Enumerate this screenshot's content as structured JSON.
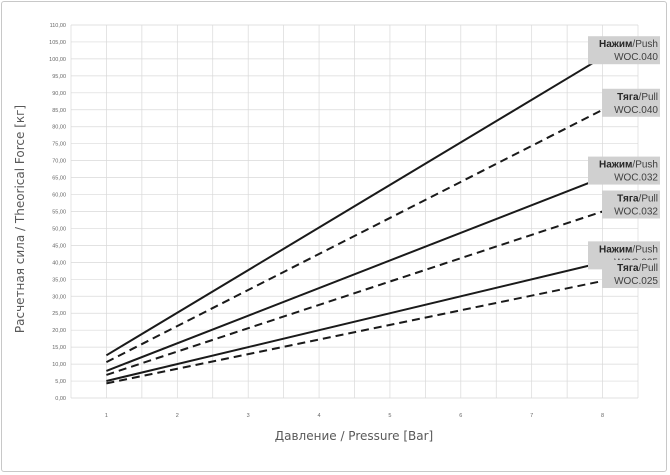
{
  "chart_data": {
    "type": "line",
    "title": "",
    "xlabel": "Давление / Pressure [Bar]",
    "ylabel": "Расчетная сила / Theorical Force [кг]",
    "x_ticks": [
      "1",
      "2",
      "3",
      "4",
      "5",
      "6",
      "7",
      "8"
    ],
    "y_ticks": [
      "0,00",
      "5,00",
      "10,00",
      "15,00",
      "20,00",
      "25,00",
      "30,00",
      "35,00",
      "40,00",
      "45,00",
      "50,00",
      "55,00",
      "60,00",
      "65,00",
      "70,00",
      "75,00",
      "80,00",
      "85,00",
      "90,00",
      "95,00",
      "100,00",
      "105,00",
      "110,00"
    ],
    "xlim": [
      0.5,
      8.5
    ],
    "ylim": [
      0,
      110
    ],
    "grid": true,
    "series": [
      {
        "label_bold": "Нажим",
        "label_rest": "/Push",
        "label_model": "WOC.040",
        "style": "solid",
        "x": [
          1,
          8
        ],
        "y": [
          12.6,
          100.5
        ]
      },
      {
        "label_bold": "Тяга",
        "label_rest": "/Pull",
        "label_model": "WOC.040",
        "style": "dashed",
        "x": [
          1,
          8
        ],
        "y": [
          10.6,
          85.0
        ]
      },
      {
        "label_bold": "Нажим",
        "label_rest": "/Push",
        "label_model": "WOC.032",
        "style": "solid",
        "x": [
          1,
          8
        ],
        "y": [
          8.0,
          65.0
        ]
      },
      {
        "label_bold": "Тяга",
        "label_rest": "/Pull",
        "label_model": "WOC.032",
        "style": "dashed",
        "x": [
          1,
          8
        ],
        "y": [
          6.8,
          55.0
        ]
      },
      {
        "label_bold": "Нажим",
        "label_rest": "/Push",
        "label_model": "WOC.025",
        "style": "solid",
        "x": [
          1,
          8
        ],
        "y": [
          5.0,
          40.0
        ]
      },
      {
        "label_bold": "Тяга",
        "label_rest": "/Pull",
        "label_model": "WOC.025",
        "style": "dashed",
        "x": [
          1,
          8
        ],
        "y": [
          4.3,
          34.5
        ]
      }
    ],
    "colors": {
      "line": "#1a1a1a",
      "grid": "#d9d9d9",
      "label_bg": "#d0d0d0"
    }
  }
}
